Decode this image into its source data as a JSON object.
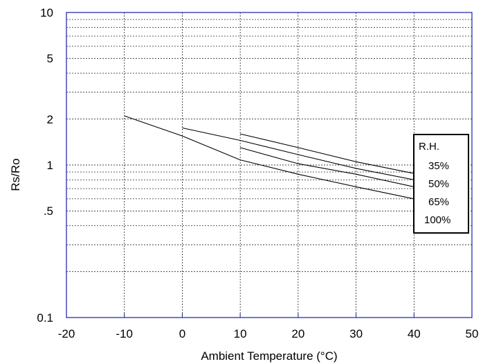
{
  "chart_data": {
    "type": "line",
    "title": "",
    "xlabel": "Ambient Temperature (°C)",
    "ylabel": "Rs/Ro",
    "xlim": [
      -20,
      50
    ],
    "ylim": [
      0.1,
      10
    ],
    "yscale": "log",
    "grid": true,
    "x_ticks": [
      "-20",
      "-10",
      "0",
      "10",
      "20",
      "30",
      "40",
      "50"
    ],
    "x_tick_values": [
      -20,
      -10,
      0,
      10,
      20,
      30,
      40,
      50
    ],
    "y_ticks": [
      "0.1",
      ".5",
      "1",
      "2",
      "5",
      "10"
    ],
    "y_tick_values": [
      0.1,
      0.5,
      1,
      2,
      5,
      10
    ],
    "y_gridlines": [
      0.2,
      0.3,
      0.4,
      0.5,
      0.6,
      0.7,
      0.8,
      0.9,
      1,
      2,
      3,
      4,
      5,
      6,
      7,
      8,
      9
    ],
    "legend": {
      "title": "R.H.",
      "position": "right",
      "entries": [
        "35%",
        "50%",
        "65%",
        "100%"
      ]
    },
    "series": [
      {
        "name": "35%",
        "x": [
          10,
          20,
          30,
          40
        ],
        "y": [
          1.6,
          1.3,
          1.05,
          0.88
        ]
      },
      {
        "name": "50%",
        "x": [
          0,
          10,
          20,
          30,
          40
        ],
        "y": [
          1.75,
          1.45,
          1.17,
          0.95,
          0.8
        ]
      },
      {
        "name": "65%",
        "x": [
          10,
          20,
          30,
          40
        ],
        "y": [
          1.3,
          1.02,
          0.87,
          0.72
        ]
      },
      {
        "name": "100%",
        "x": [
          -10,
          0,
          10,
          20,
          30,
          40
        ],
        "y": [
          2.1,
          1.55,
          1.08,
          0.87,
          0.72,
          0.6
        ]
      }
    ],
    "colors": {
      "axes": "#1a1aa8",
      "grid": "#000000",
      "series": "#000000"
    }
  }
}
